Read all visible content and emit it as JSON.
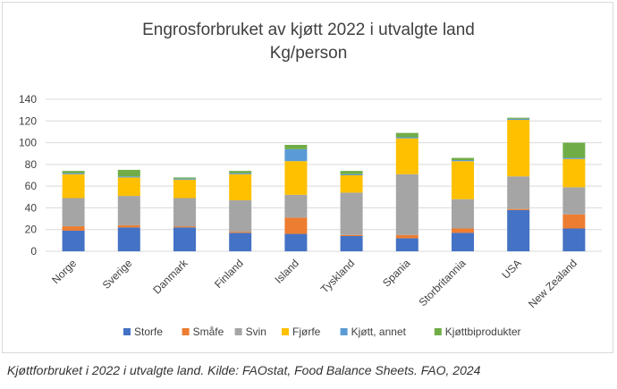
{
  "chart_data": {
    "type": "bar",
    "stacked": true,
    "title": "Engrosforbruket av kjøtt 2022 i utvalgte land",
    "subtitle": "Kg/person",
    "xlabel": "",
    "ylabel": "",
    "ylim": [
      0,
      140
    ],
    "yticks": [
      0,
      20,
      40,
      60,
      80,
      100,
      120,
      140
    ],
    "grid": true,
    "legend": "bottom",
    "categories": [
      "Norge",
      "Sverige",
      "Danmark",
      "Finland",
      "Island",
      "Tyskland",
      "Spania",
      "Storbritannia",
      "USA",
      "New Zealand"
    ],
    "series": [
      {
        "name": "Storfe",
        "color": "#4472c4",
        "values": [
          19,
          22,
          22,
          17,
          16,
          14,
          12,
          17,
          38,
          21
        ]
      },
      {
        "name": "Småfe",
        "color": "#ed7d31",
        "values": [
          4,
          2,
          1,
          1,
          15,
          1,
          3,
          4,
          1,
          13
        ]
      },
      {
        "name": "Svin",
        "color": "#a5a5a5",
        "values": [
          26,
          27,
          26,
          29,
          21,
          39,
          56,
          27,
          30,
          25
        ]
      },
      {
        "name": "Fjørfe",
        "color": "#ffc000",
        "values": [
          22,
          17,
          17,
          24,
          31,
          16,
          33,
          35,
          52,
          26
        ]
      },
      {
        "name": "Kjøtt, annet",
        "color": "#5b9bd5",
        "values": [
          1,
          1,
          1,
          1,
          11,
          1,
          1,
          1,
          1,
          1
        ]
      },
      {
        "name": "Kjøttbiprodukter",
        "color": "#70ad47",
        "values": [
          2,
          6,
          1,
          2,
          4,
          3,
          4,
          2,
          1,
          14
        ]
      }
    ]
  },
  "caption": "Kjøttforbruket i 2022 i utvalgte land. Kilde: FAOstat, Food Balance Sheets. FAO, 2024"
}
